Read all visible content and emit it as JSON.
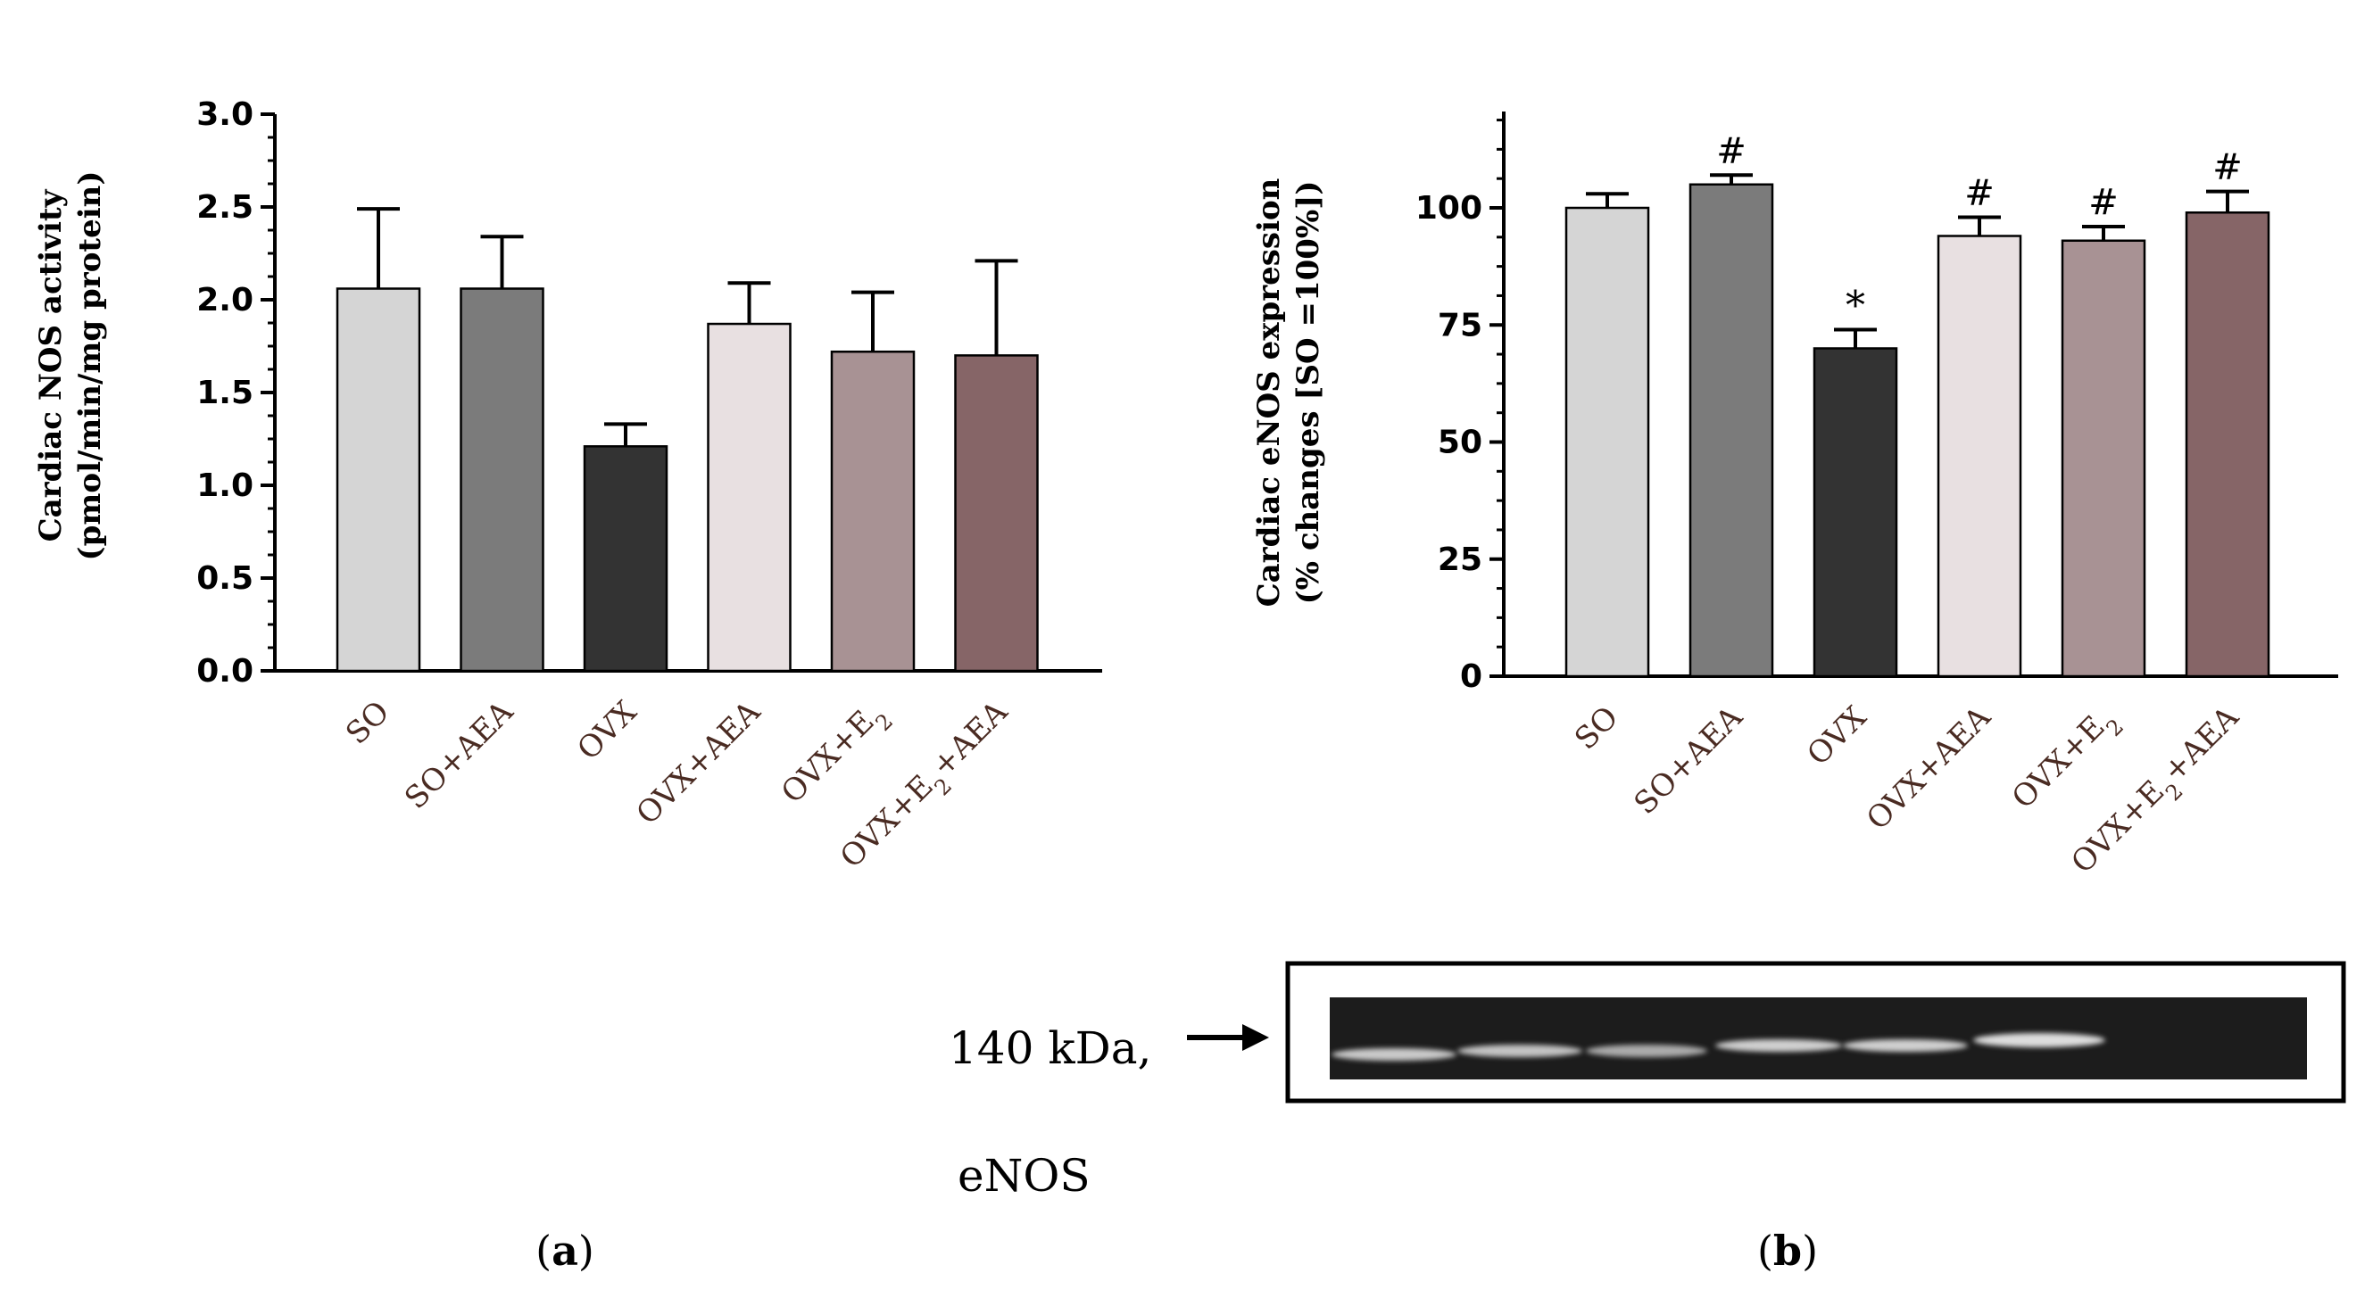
{
  "chart_data": [
    {
      "panel": "a",
      "type": "bar",
      "categories": [
        "SO",
        "SO+AEA",
        "OVX",
        "OVX+AEA",
        "OVX+E2",
        "OVX+E2+AEA"
      ],
      "category_labels": [
        {
          "base": "SO"
        },
        {
          "base": "SO+AEA"
        },
        {
          "base": "OVX"
        },
        {
          "base": "OVX+AEA"
        },
        {
          "base": "OVX+E",
          "sub": "2"
        },
        {
          "base": "OVX+E",
          "sub": "2",
          "rest": "+AEA"
        }
      ],
      "values": [
        2.06,
        2.06,
        1.21,
        1.87,
        1.72,
        1.7
      ],
      "errors": [
        0.43,
        0.28,
        0.12,
        0.22,
        0.32,
        0.51
      ],
      "colors": [
        "#d5d5d5",
        "#7b7b7b",
        "#333333",
        "#e8e0e1",
        "#a89294",
        "#866567"
      ],
      "ylabel_line1": "Cardiac NOS activity",
      "ylabel_line2": "(pmol/min/mg protein)",
      "yticks": [
        "0.0",
        "0.5",
        "1.0",
        "1.5",
        "2.0",
        "2.5",
        "3.0"
      ],
      "ylim": [
        0,
        3.0
      ],
      "annotations": [
        "",
        "",
        "",
        "",
        "",
        ""
      ]
    },
    {
      "panel": "b",
      "type": "bar",
      "categories": [
        "SO",
        "SO+AEA",
        "OVX",
        "OVX+AEA",
        "OVX+E2",
        "OVX+E2+AEA"
      ],
      "category_labels": [
        {
          "base": "SO"
        },
        {
          "base": "SO+AEA"
        },
        {
          "base": "OVX"
        },
        {
          "base": "OVX+AEA"
        },
        {
          "base": "OVX+E",
          "sub": "2"
        },
        {
          "base": "OVX+E",
          "sub": "2",
          "rest": "+AEA"
        }
      ],
      "values": [
        100,
        105,
        70,
        94,
        93,
        99
      ],
      "errors": [
        3,
        2,
        4,
        4,
        3,
        4.5
      ],
      "colors": [
        "#d5d5d5",
        "#7b7b7b",
        "#333333",
        "#e8e0e1",
        "#a89294",
        "#866567"
      ],
      "ylabel_line1": "Cardiac eNOS expression",
      "ylabel_line2": "(% changes [SO =100%])",
      "yticks": [
        "0",
        "25",
        "50",
        "75",
        "100"
      ],
      "ylim": [
        0,
        120
      ],
      "annotations": [
        "",
        "#",
        "*",
        "#",
        "#",
        "#"
      ]
    }
  ],
  "blot": {
    "label_kda": "140 kDa,",
    "label_protein": "eNOS",
    "band_count": 6
  },
  "panel_labels": {
    "a": "a",
    "b": "b"
  },
  "colors": {
    "axis": "#000000",
    "tick_label": "#000000",
    "category_label": "#4a2b22",
    "background": "#ffffff"
  }
}
